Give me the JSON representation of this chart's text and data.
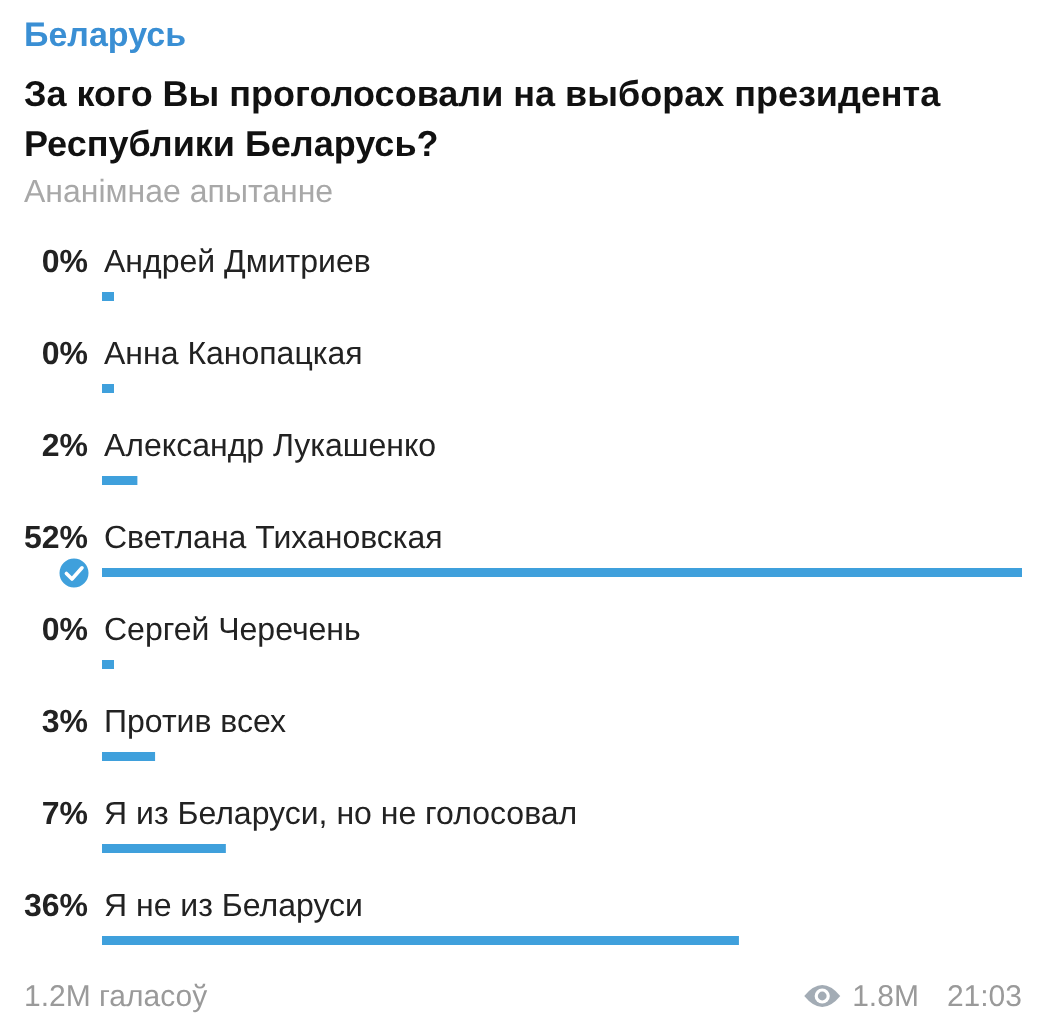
{
  "chart_data": {
    "type": "bar",
    "orientation": "horizontal",
    "title": "За кого Вы проголосовали на выборах президента Республики Беларусь?",
    "subtitle": "Ананімнае апытанне",
    "categories": [
      "Андрей Дмитриев",
      "Анна Канопацкая",
      "Александр Лукашенко",
      "Светлана Тихановская",
      "Сергей Черечень",
      "Против всех",
      "Я из Беларуси, но не голосовал",
      "Я не из Беларуси"
    ],
    "values": [
      0,
      0,
      2,
      52,
      0,
      3,
      7,
      36
    ],
    "value_labels": [
      "0%",
      "0%",
      "2%",
      "52%",
      "0%",
      "3%",
      "7%",
      "36%"
    ],
    "color": "#3fa0dc",
    "annotations": [
      "Беларусь",
      "1.2M галасоў",
      "1.8M",
      "21:03"
    ]
  }
}
